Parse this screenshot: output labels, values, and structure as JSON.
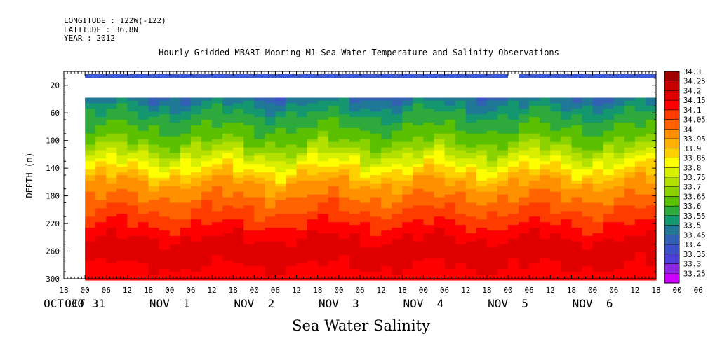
{
  "header": {
    "longitude": "LONGITUDE : 122W(-122)",
    "latitude": "LATITUDE : 36.8N",
    "year": "YEAR : 2012"
  },
  "chart_data": {
    "type": "heatmap",
    "title": "Hourly Gridded MBARI Mooring M1 Sea Water Temperature and Salinity Observations",
    "footer_label": "Sea Water Salinity",
    "ylabel": "DEPTH (m)",
    "ylim": [
      0,
      300
    ],
    "y_inverted": true,
    "y_ticks": [
      20,
      60,
      100,
      140,
      180,
      220,
      260,
      300
    ],
    "x_hour_ticks": [
      "18",
      "00",
      "06",
      "12",
      "18",
      "00",
      "06",
      "12",
      "18",
      "00",
      "06",
      "12",
      "18",
      "00",
      "06",
      "12",
      "18",
      "00",
      "06",
      "12",
      "18",
      "00",
      "06",
      "12",
      "18",
      "00",
      "06",
      "12",
      "18",
      "00",
      "06",
      "12",
      "18"
    ],
    "x_day_labels": [
      "OCT 30",
      "OCT 31",
      "NOV  1",
      "NOV  2",
      "NOV  3",
      "NOV  4",
      "NOV  5",
      "NOV  6"
    ],
    "x_range_hours": [
      -6,
      162
    ],
    "data_start_hour": 0,
    "surface_gap_start_hour": 120,
    "surface_gap_end_hour": 123,
    "colorbar_levels": [
      "34.3",
      "34.25",
      "34.2",
      "34.15",
      "34.1",
      "34.05",
      "34",
      "33.95",
      "33.9",
      "33.85",
      "33.8",
      "33.75",
      "33.7",
      "33.65",
      "33.6",
      "33.55",
      "33.5",
      "33.45",
      "33.4",
      "33.35",
      "33.3",
      "33.25"
    ],
    "colorbar_colors": [
      "#a00000",
      "#c80000",
      "#e00000",
      "#ff0000",
      "#ff3c00",
      "#ff6400",
      "#ff9000",
      "#ffb000",
      "#ffd000",
      "#ffff00",
      "#d8f000",
      "#b4e000",
      "#8cd200",
      "#5ac000",
      "#2eaa3c",
      "#14966e",
      "#1e7896",
      "#3260b4",
      "#3c50c8",
      "#4c40d8",
      "#8c28e0",
      "#cc00ff"
    ],
    "depth_profile": [
      {
        "depth": 10,
        "salinity": 33.4
      },
      {
        "depth": 40,
        "salinity": 33.52
      },
      {
        "depth": 60,
        "salinity": 33.6
      },
      {
        "depth": 80,
        "salinity": 33.65
      },
      {
        "depth": 100,
        "salinity": 33.7
      },
      {
        "depth": 120,
        "salinity": 33.8
      },
      {
        "depth": 140,
        "salinity": 33.9
      },
      {
        "depth": 160,
        "salinity": 34.0
      },
      {
        "depth": 180,
        "salinity": 34.05
      },
      {
        "depth": 200,
        "salinity": 34.1
      },
      {
        "depth": 220,
        "salinity": 34.15
      },
      {
        "depth": 240,
        "salinity": 34.2
      },
      {
        "depth": 260,
        "salinity": 34.25
      },
      {
        "depth": 280,
        "salinity": 34.2
      },
      {
        "depth": 300,
        "salinity": 34.15
      }
    ]
  }
}
